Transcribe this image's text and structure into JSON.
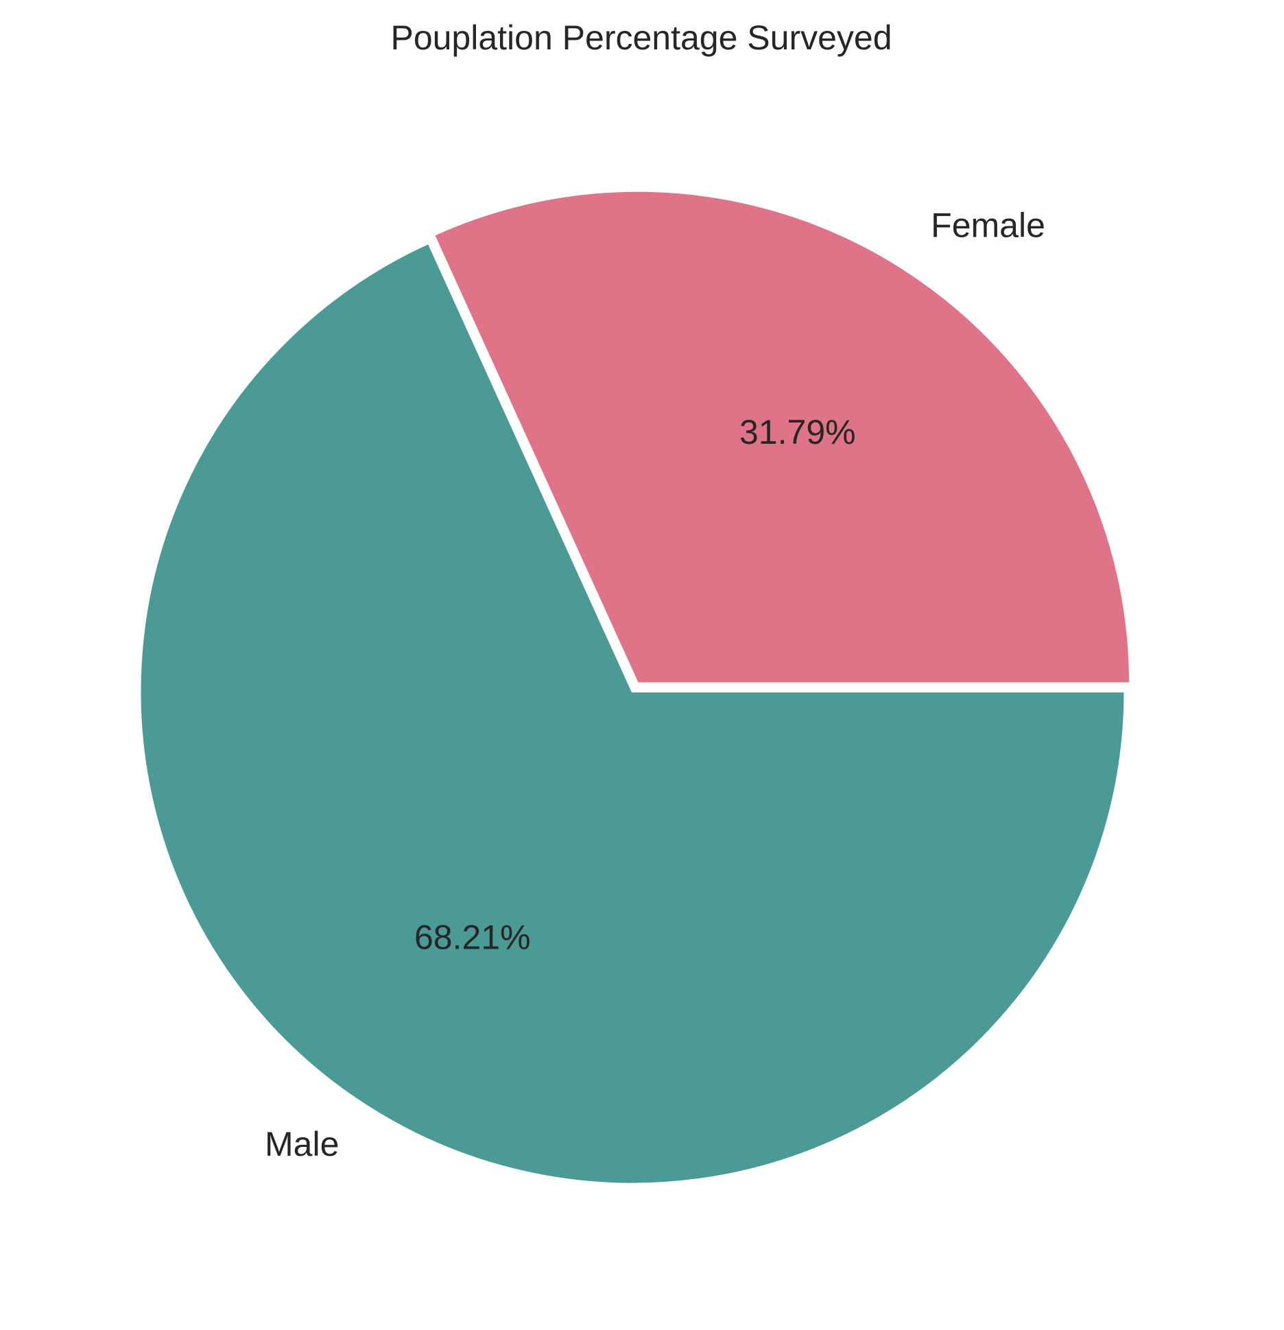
{
  "chart_data": {
    "type": "pie",
    "title": "Pouplation Percentage Surveyed",
    "slices": [
      {
        "label": "Female",
        "value": 31.79,
        "pct_label": "31.79%",
        "color": "#df7489",
        "exploded": true
      },
      {
        "label": "Male",
        "value": 68.21,
        "pct_label": "68.21%",
        "color": "#4c9a96",
        "exploded": false
      }
    ],
    "start_angle_deg": 0,
    "direction": "counterclockwise",
    "slice_edge_color": "#ffffff",
    "legend": "none"
  }
}
